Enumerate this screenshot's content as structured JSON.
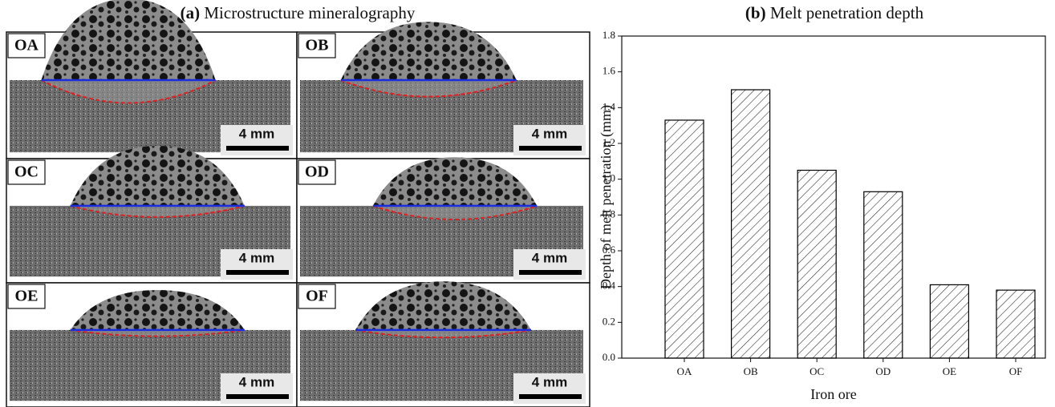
{
  "panel_a": {
    "tag": "(a)",
    "title": "Microstructure mineralography",
    "samples": [
      {
        "label": "OA",
        "scale": "4 mm"
      },
      {
        "label": "OB",
        "scale": "4 mm"
      },
      {
        "label": "OC",
        "scale": "4 mm"
      },
      {
        "label": "OD",
        "scale": "4 mm"
      },
      {
        "label": "OE",
        "scale": "4 mm"
      },
      {
        "label": "OF",
        "scale": "4 mm"
      }
    ]
  },
  "chart_data": {
    "type": "bar",
    "tag": "(b)",
    "title": "Melt penetration depth",
    "x_label": "Iron ore",
    "y_label": "Depth of melt penetration (mm)",
    "categories": [
      "OA",
      "OB",
      "OC",
      "OD",
      "OE",
      "OF"
    ],
    "values": [
      1.33,
      1.5,
      1.05,
      0.93,
      0.41,
      0.38
    ],
    "color": "#000000",
    "ylim": [
      0,
      1.8
    ],
    "yticks": [
      {
        "value": 0,
        "label": "0.0"
      },
      0.2,
      0.4,
      0.6,
      0.8,
      {
        "value": 1,
        "label": "1.0"
      },
      1.2,
      1.4,
      1.6,
      1.8
    ],
    "grid": false
  }
}
